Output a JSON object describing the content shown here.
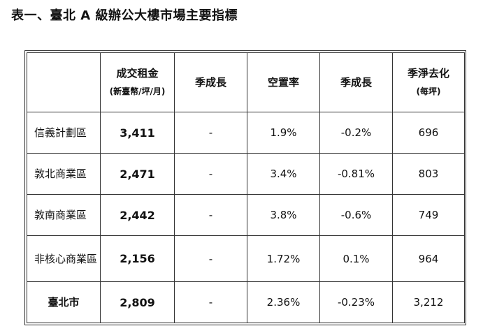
{
  "header": {
    "title": "表一、臺北 A 級辦公大樓市場主要指標"
  },
  "table": {
    "columns": [
      {
        "title": "成交租金",
        "unit": "(新臺幣/坪/月)"
      },
      {
        "title": "季成長"
      },
      {
        "title": "空置率"
      },
      {
        "title": "季成長"
      },
      {
        "title": "季淨去化",
        "unit": "(每坪)"
      }
    ],
    "rows": [
      [
        "信義計劃區",
        "3,411",
        "-",
        "1.9%",
        "-0.2%",
        "696"
      ],
      [
        "敦北商業區",
        "2,471",
        "-",
        "3.4%",
        "-0.81%",
        "803"
      ],
      [
        "敦南商業區",
        "2,442",
        "-",
        "3.8%",
        "-0.6%",
        "749"
      ],
      [
        "非核心商業區",
        "2,156",
        "-",
        "1.72%",
        "0.1%",
        "964"
      ],
      [
        "臺北市",
        "2,809",
        "-",
        "2.36%",
        "-0.23%",
        "3,212"
      ]
    ]
  }
}
